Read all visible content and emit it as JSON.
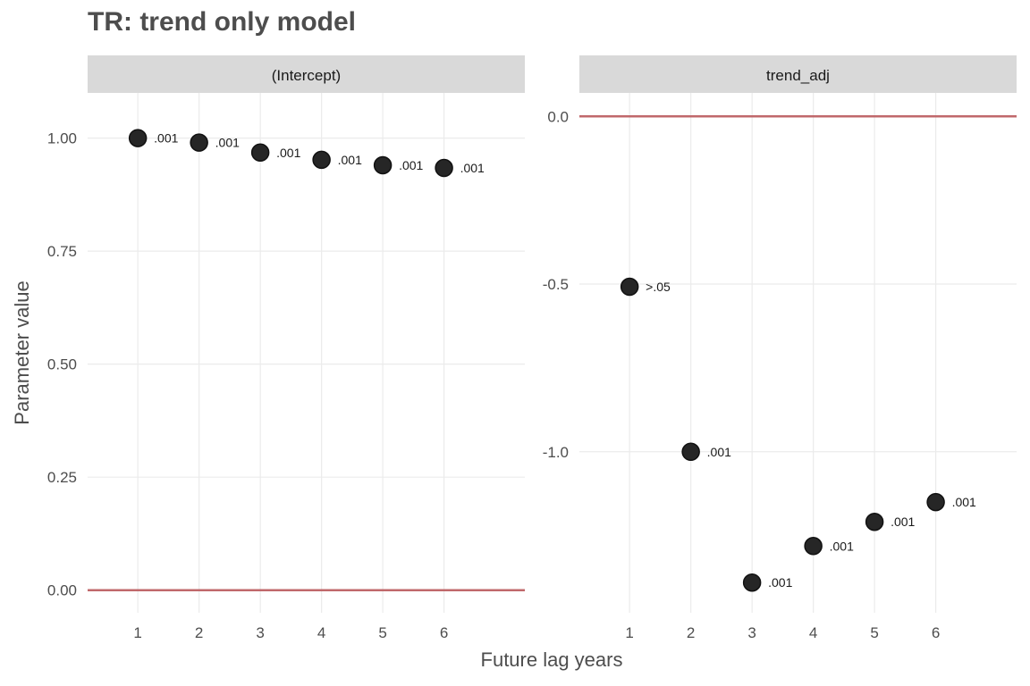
{
  "title": "TR: trend only model",
  "chart_data": {
    "type": "scatter",
    "title": "TR: trend only model",
    "xlabel": "Future lag years",
    "ylabel": "Parameter value",
    "grid": true,
    "reference_line": 0,
    "colors": {
      "points": "#262626",
      "reference_line": "#c0686b",
      "strip_bg": "#d9d9d9",
      "grid": "#ebebeb"
    },
    "panels": [
      {
        "strip_label": "(Intercept)",
        "x": [
          1,
          2,
          3,
          4,
          5,
          6
        ],
        "y": [
          1.0,
          0.99,
          0.968,
          0.952,
          0.94,
          0.934
        ],
        "point_labels": [
          ".001",
          ".001",
          ".001",
          ".001",
          ".001",
          ".001"
        ],
        "xlim": [
          0.18,
          7.32
        ],
        "ylim": [
          -0.05,
          1.1
        ],
        "x_ticks": [
          1,
          2,
          3,
          4,
          5,
          6
        ],
        "x_tick_labels": [
          "1",
          "2",
          "3",
          "4",
          "5",
          "6"
        ],
        "y_ticks": [
          0.0,
          0.25,
          0.5,
          0.75,
          1.0
        ],
        "y_tick_labels": [
          "0.00",
          "0.25",
          "0.50",
          "0.75",
          "1.00"
        ]
      },
      {
        "strip_label": "trend_adj",
        "x": [
          1,
          2,
          3,
          4,
          5,
          6
        ],
        "y": [
          -0.508,
          -1.0,
          -1.39,
          -1.281,
          -1.209,
          -1.15
        ],
        "point_labels": [
          ">.05",
          ".001",
          ".001",
          ".001",
          ".001",
          ".001"
        ],
        "xlim": [
          0.18,
          7.32
        ],
        "ylim": [
          -1.48,
          0.07
        ],
        "x_ticks": [
          1,
          2,
          3,
          4,
          5,
          6
        ],
        "x_tick_labels": [
          "1",
          "2",
          "3",
          "4",
          "5",
          "6"
        ],
        "y_ticks": [
          -1.0,
          -0.5,
          0.0
        ],
        "y_tick_labels": [
          "-1.0",
          "-0.5",
          "0.0"
        ]
      }
    ]
  }
}
